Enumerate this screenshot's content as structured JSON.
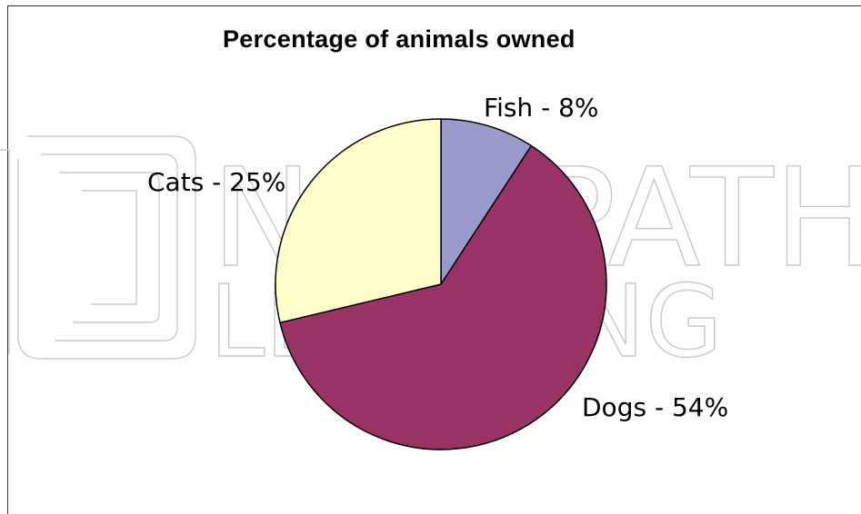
{
  "chart_data": {
    "type": "pie",
    "title": "Percentage of animals owned",
    "slices": [
      {
        "label": "Fish - 8%",
        "value": 8,
        "color": "#9999cc"
      },
      {
        "label": "Dogs - 54%",
        "value": 54,
        "color": "#993366"
      },
      {
        "label": "Cats - 25%",
        "value": 25,
        "color": "#ffffcc"
      }
    ]
  },
  "watermark": {
    "line1": "NEWPATH",
    "line2": "LEARNING"
  }
}
